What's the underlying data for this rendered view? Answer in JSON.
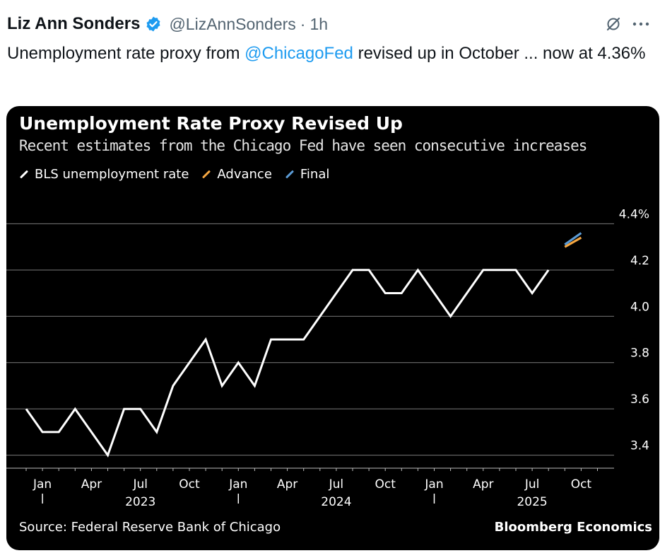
{
  "tweet": {
    "author": "Liz Ann Sonders",
    "handle": "@LizAnnSonders",
    "separator": "·",
    "time": "1h",
    "text_before": "Unemployment rate proxy from ",
    "mention": "@ChicagoFed",
    "text_after": " revised up in October ... now at 4.36%",
    "icons": [
      "verified-badge-icon",
      "grok-icon",
      "more-icon"
    ],
    "colors": {
      "link": "#1d9bf0",
      "verified": "#1d9bf0",
      "muted": "#536471"
    }
  },
  "chart_data": {
    "type": "line",
    "title": "Unemployment Rate Proxy Revised Up",
    "subtitle": "Recent estimates from the Chicago Fed have seen consecutive increases",
    "legend": [
      {
        "name": "BLS unemployment rate",
        "color": "#ffffff"
      },
      {
        "name": "Advance",
        "color": "#f5a742"
      },
      {
        "name": "Final",
        "color": "#5b9bd5"
      }
    ],
    "x_ticks": [
      "Jan",
      "Apr",
      "Jul",
      "Oct",
      "Jan",
      "Apr",
      "Jul",
      "Oct",
      "Jan",
      "Apr",
      "Jul",
      "Oct"
    ],
    "x_years": [
      "2023",
      "2024",
      "2025"
    ],
    "y_ticks": [
      "3.4",
      "3.6",
      "3.8",
      "4.0",
      "4.2",
      "4.4%"
    ],
    "ylim": [
      3.35,
      4.45
    ],
    "grid": true,
    "series": [
      {
        "name": "BLS unemployment rate",
        "color": "#ffffff",
        "x": [
          "2022-12",
          "2023-01",
          "2023-02",
          "2023-03",
          "2023-04",
          "2023-05",
          "2023-06",
          "2023-07",
          "2023-08",
          "2023-09",
          "2023-10",
          "2023-11",
          "2023-12",
          "2024-01",
          "2024-02",
          "2024-03",
          "2024-04",
          "2024-05",
          "2024-06",
          "2024-07",
          "2024-08",
          "2024-09",
          "2024-10",
          "2024-11",
          "2024-12",
          "2025-01",
          "2025-02",
          "2025-03",
          "2025-04",
          "2025-05",
          "2025-06",
          "2025-07",
          "2025-08"
        ],
        "values": [
          3.6,
          3.5,
          3.5,
          3.6,
          3.5,
          3.4,
          3.6,
          3.6,
          3.5,
          3.7,
          3.8,
          3.9,
          3.7,
          3.8,
          3.7,
          3.9,
          3.9,
          3.9,
          4.0,
          4.1,
          4.2,
          4.2,
          4.1,
          4.1,
          4.2,
          4.1,
          4.0,
          4.1,
          4.2,
          4.2,
          4.2,
          4.1,
          4.2
        ]
      },
      {
        "name": "Advance",
        "color": "#f5a742",
        "x": [
          "2025-09",
          "2025-10"
        ],
        "values": [
          4.3,
          4.34
        ]
      },
      {
        "name": "Final",
        "color": "#5b9bd5",
        "x": [
          "2025-09",
          "2025-10"
        ],
        "values": [
          4.31,
          4.36
        ]
      }
    ],
    "source": "Source: Federal Reserve Bank of Chicago",
    "brand": "Bloomberg Economics"
  }
}
